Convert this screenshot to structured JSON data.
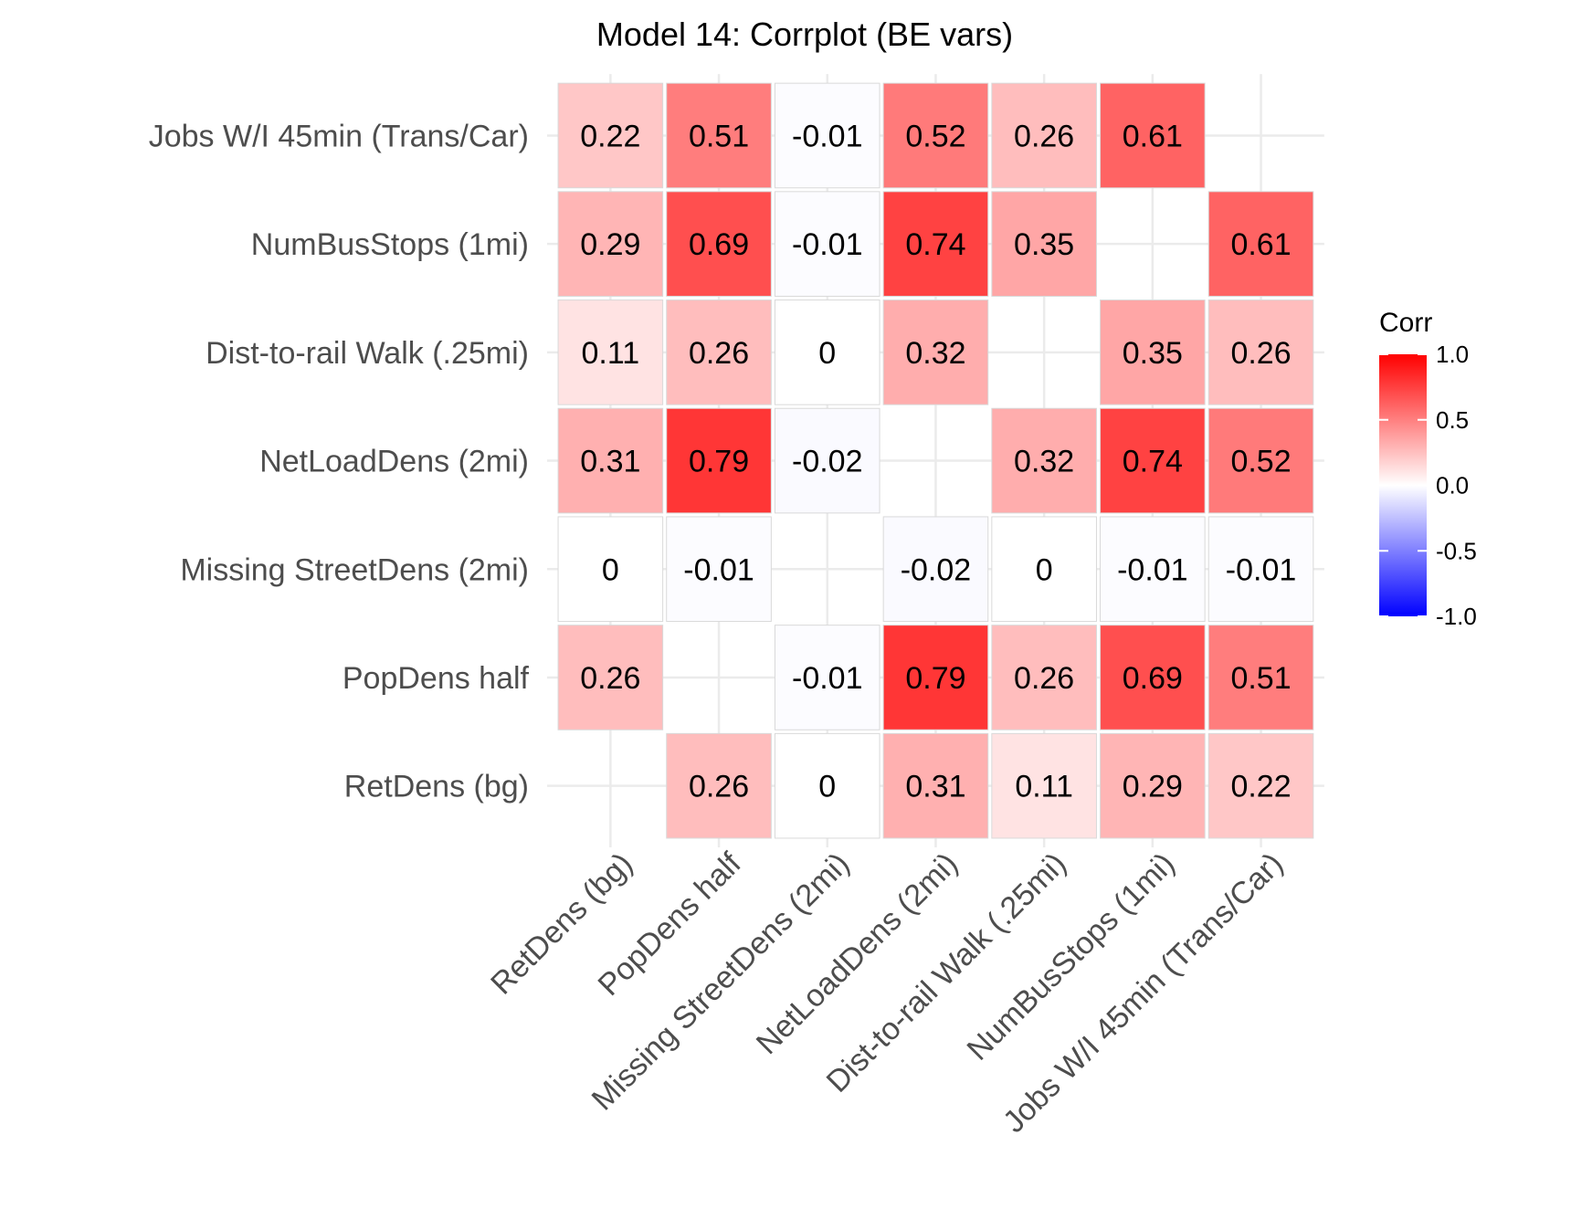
{
  "chart_data": {
    "type": "heatmap",
    "title": "Model 14: Corrplot (BE vars)",
    "variables": [
      "RetDens (bg)",
      "PopDens half",
      "Missing StreetDens (2mi)",
      "NetLoadDens (2mi)",
      "Dist-to-rail Walk (.25mi)",
      "NumBusStops (1mi)",
      "Jobs W/I 45min (Trans/Car)"
    ],
    "matrix": [
      [
        null,
        0.26,
        0,
        0.31,
        0.11,
        0.29,
        0.22
      ],
      [
        0.26,
        null,
        -0.01,
        0.79,
        0.26,
        0.69,
        0.51
      ],
      [
        0,
        -0.01,
        null,
        -0.02,
        0,
        -0.01,
        -0.01
      ],
      [
        0.31,
        0.79,
        -0.02,
        null,
        0.32,
        0.74,
        0.52
      ],
      [
        0.11,
        0.26,
        0,
        0.32,
        null,
        0.35,
        0.26
      ],
      [
        0.29,
        0.69,
        -0.01,
        0.74,
        0.35,
        null,
        0.61
      ],
      [
        0.22,
        0.51,
        -0.01,
        0.52,
        0.26,
        0.61,
        null
      ]
    ],
    "cell_labels": [
      [
        null,
        "0.26",
        "0",
        "0.31",
        "0.11",
        "0.29",
        "0.22"
      ],
      [
        "0.26",
        null,
        "-0.01",
        "0.79",
        "0.26",
        "0.69",
        "0.51"
      ],
      [
        "0",
        "-0.01",
        null,
        "-0.02",
        "0",
        "-0.01",
        "-0.01"
      ],
      [
        "0.31",
        "0.79",
        "-0.02",
        null,
        "0.32",
        "0.74",
        "0.52"
      ],
      [
        "0.11",
        "0.26",
        "0",
        "0.32",
        null,
        "0.35",
        "0.26"
      ],
      [
        "0.29",
        "0.69",
        "-0.01",
        "0.74",
        "0.35",
        null,
        "0.61"
      ],
      [
        "0.22",
        "0.51",
        "-0.01",
        "0.52",
        "0.26",
        "0.61",
        null
      ]
    ],
    "legend": {
      "title": "Corr",
      "ticks": [
        "1.0",
        "0.5",
        "0.0",
        "-0.5",
        "-1.0"
      ],
      "tick_values": [
        1,
        0.5,
        0,
        -0.5,
        -1
      ],
      "range": [
        -1,
        1
      ],
      "placement": "right"
    },
    "colors": {
      "low": "#0000ff",
      "mid": "#ffffff",
      "high": "#ff0000",
      "grid": "#ebebeb",
      "cell_border": "#d9d9d9",
      "text": "#000000",
      "axis_text": "#4d4d4d"
    },
    "grid": true
  }
}
